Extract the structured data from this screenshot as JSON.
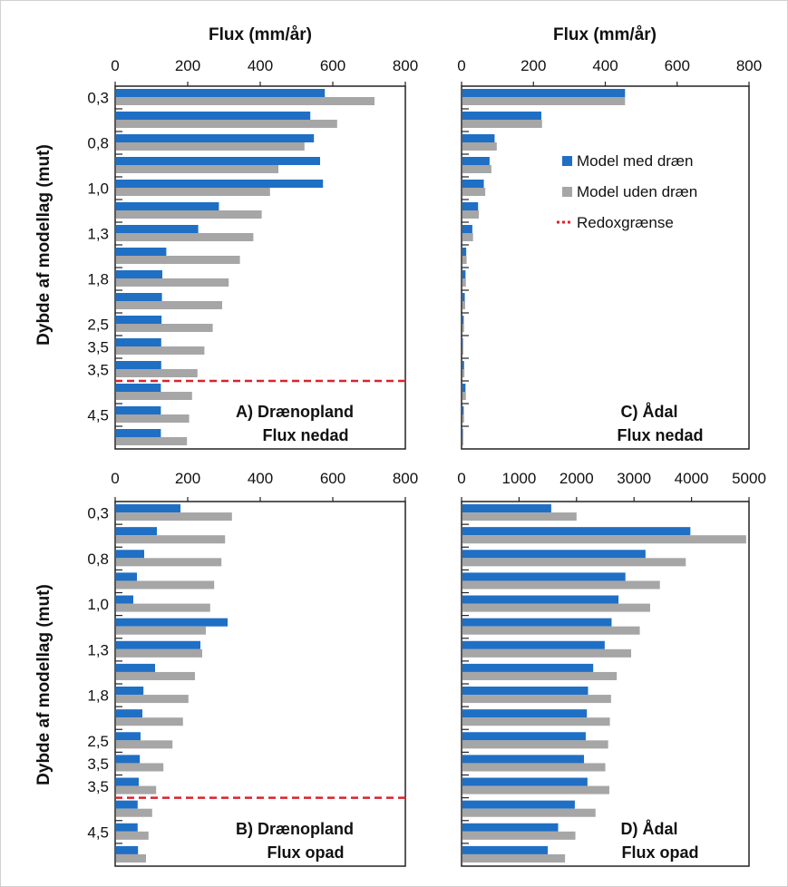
{
  "colors": {
    "med": "#1f6fc5",
    "uden": "#a6a6a6",
    "redox": "#d9232d",
    "frame": "#222222",
    "border": "#d0d0d0"
  },
  "ylabel": "Dybde af modellag (mut)",
  "top_xlabel": "Flux (mm/år)",
  "legend": [
    {
      "label": "Model med dræn",
      "kind": "box",
      "color": "#1f6fc5"
    },
    {
      "label": "Model uden dræn",
      "kind": "box",
      "color": "#a6a6a6"
    },
    {
      "label": "Redoxgrænse",
      "kind": "dotted",
      "color": "#d9232d"
    }
  ],
  "chart_data": [
    {
      "id": "A",
      "type": "bar",
      "orientation": "horizontal",
      "label_line1": "A) Drænopland",
      "label_line2": "Flux nedad",
      "xlabel": "Flux (mm/år)",
      "xlim": [
        0,
        800
      ],
      "xticks": [
        0,
        200,
        400,
        600,
        800
      ],
      "ytick_labels": [
        "0,3",
        "0,8",
        "1,0",
        "1,3",
        "1,8",
        "2,5",
        "3,5",
        "3,5",
        "4,5"
      ],
      "redox_after_index": 12,
      "series": [
        {
          "name": "Model med dræn",
          "values": [
            578,
            538,
            548,
            565,
            573,
            286,
            229,
            141,
            130,
            129,
            128,
            127,
            127,
            126,
            126,
            126
          ]
        },
        {
          "name": "Model uden dræn",
          "values": [
            715,
            612,
            522,
            450,
            427,
            404,
            381,
            344,
            313,
            295,
            269,
            246,
            227,
            212,
            204,
            198
          ]
        }
      ]
    },
    {
      "id": "C",
      "type": "bar",
      "orientation": "horizontal",
      "label_line1": "C) Ådal",
      "label_line2": "Flux nedad",
      "xlabel": "Flux (mm/år)",
      "xlim": [
        0,
        800
      ],
      "xticks": [
        0,
        200,
        400,
        600,
        800
      ],
      "ytick_labels": [],
      "redox_after_index": null,
      "series": [
        {
          "name": "Model med dræn",
          "values": [
            455,
            222,
            92,
            78,
            62,
            46,
            30,
            13,
            11,
            9,
            6,
            4,
            7,
            11,
            6,
            4
          ]
        },
        {
          "name": "Model uden dræn",
          "values": [
            455,
            224,
            98,
            83,
            66,
            48,
            32,
            14,
            12,
            10,
            7,
            5,
            8,
            12,
            7,
            5
          ]
        }
      ]
    },
    {
      "id": "B",
      "type": "bar",
      "orientation": "horizontal",
      "label_line1": "B) Drænopland",
      "label_line2": "Flux opad",
      "xlabel": "",
      "xlim": [
        0,
        800
      ],
      "xticks": [
        0,
        200,
        400,
        600,
        800
      ],
      "ytick_labels": [
        "0,3",
        "0,8",
        "1,0",
        "1,3",
        "1,8",
        "2,5",
        "3,5",
        "3,5",
        "4,5"
      ],
      "redox_after_index": 12,
      "series": [
        {
          "name": "Model med dræn",
          "values": [
            180,
            115,
            80,
            60,
            50,
            310,
            235,
            110,
            78,
            75,
            70,
            68,
            65,
            62,
            62,
            63
          ]
        },
        {
          "name": "Model uden dræn",
          "values": [
            322,
            303,
            293,
            273,
            262,
            250,
            240,
            220,
            202,
            187,
            158,
            133,
            113,
            102,
            92,
            85
          ]
        }
      ]
    },
    {
      "id": "D",
      "type": "bar",
      "orientation": "horizontal",
      "label_line1": "D) Ådal",
      "label_line2": "Flux opad",
      "xlabel": "",
      "xlim": [
        0,
        5000
      ],
      "xticks": [
        0,
        1000,
        2000,
        3000,
        4000,
        5000
      ],
      "ytick_labels": [],
      "redox_after_index": null,
      "series": [
        {
          "name": "Model med dræn",
          "values": [
            1560,
            3980,
            3200,
            2850,
            2730,
            2610,
            2490,
            2290,
            2200,
            2180,
            2160,
            2130,
            2190,
            1970,
            1680,
            1500
          ]
        },
        {
          "name": "Model uden dræn",
          "values": [
            2000,
            4950,
            3900,
            3450,
            3280,
            3100,
            2950,
            2700,
            2600,
            2580,
            2550,
            2500,
            2570,
            2330,
            1980,
            1800
          ]
        }
      ]
    }
  ]
}
